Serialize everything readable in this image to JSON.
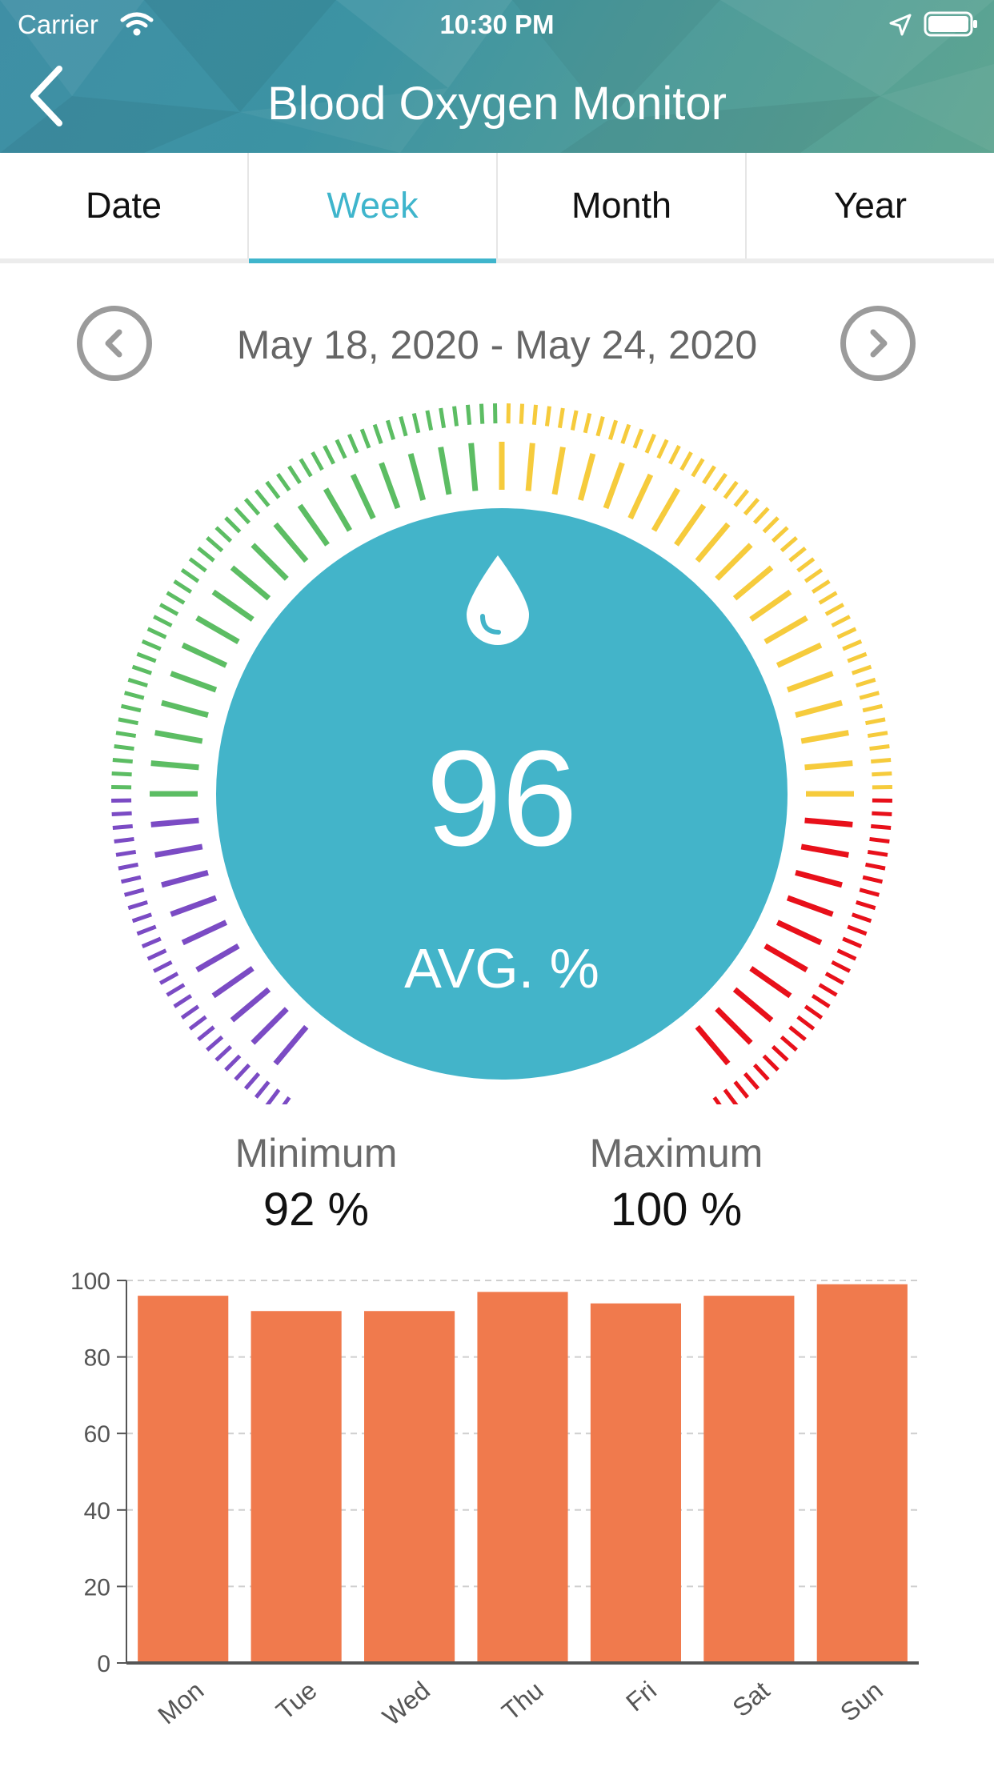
{
  "status_bar": {
    "carrier": "Carrier",
    "time": "10:30 PM"
  },
  "header": {
    "title": "Blood Oxygen Monitor"
  },
  "tabs": [
    {
      "label": "Date"
    },
    {
      "label": "Week"
    },
    {
      "label": "Month"
    },
    {
      "label": "Year"
    }
  ],
  "active_tab": "Week",
  "date_range": "May 18, 2020 - May 24, 2020",
  "gauge": {
    "value": "96",
    "label": "AVG. %",
    "icon": "drop-icon",
    "segments": [
      "#7b4bc4",
      "#5cbd63",
      "#f6cb3c",
      "#e8101a"
    ],
    "circle_color": "#43b4c9"
  },
  "stats": {
    "min_label": "Minimum",
    "min_value": "92 %",
    "max_label": "Maximum",
    "max_value": "100 %"
  },
  "chart_data": {
    "type": "bar",
    "categories": [
      "Mon",
      "Tue",
      "Wed",
      "Thu",
      "Fri",
      "Sat",
      "Sun"
    ],
    "values": [
      96,
      92,
      92,
      97,
      94,
      96,
      99
    ],
    "ylim": [
      0,
      100
    ],
    "yticks": [
      0,
      20,
      40,
      60,
      80,
      100
    ],
    "bar_color": "#f07a4d",
    "grid": true
  }
}
